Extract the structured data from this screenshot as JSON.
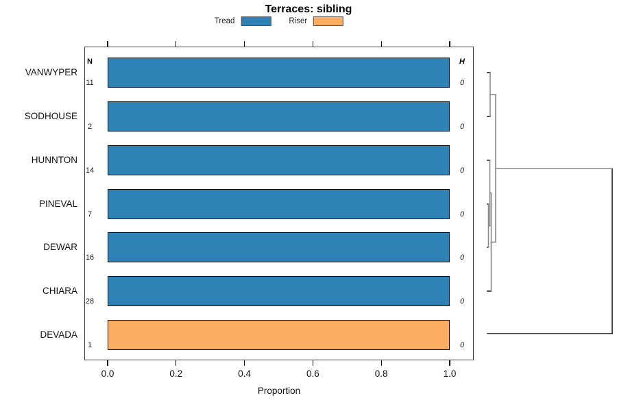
{
  "title": "Terraces: sibling",
  "legend": {
    "items": [
      {
        "label": "Tread",
        "color": "#2E81B5"
      },
      {
        "label": "Riser",
        "color": "#FBAD61"
      }
    ]
  },
  "columns": {
    "n_header": "N",
    "h_header": "H"
  },
  "x_axis": {
    "label": "Proportion",
    "ticks": [
      {
        "label": "0.0",
        "value": 0.0
      },
      {
        "label": "0.2",
        "value": 0.2
      },
      {
        "label": "0.4",
        "value": 0.4
      },
      {
        "label": "0.6",
        "value": 0.6
      },
      {
        "label": "0.8",
        "value": 0.8
      },
      {
        "label": "1.0",
        "value": 1.0
      }
    ]
  },
  "chart_data": {
    "type": "bar",
    "orientation": "horizontal",
    "title": "Terraces: sibling",
    "xlabel": "Proportion",
    "xlim": [
      0,
      1
    ],
    "grid": false,
    "legend_position": "top",
    "series": [
      {
        "name": "Tread",
        "color": "#2E81B5"
      },
      {
        "name": "Riser",
        "color": "#FBAD61"
      }
    ],
    "rows": [
      {
        "label": "VANWYPER",
        "n": "11",
        "h": "0",
        "series": "Tread",
        "proportion": 1.0
      },
      {
        "label": "SODHOUSE",
        "n": "2",
        "h": "0",
        "series": "Tread",
        "proportion": 1.0
      },
      {
        "label": "HUNNTON",
        "n": "14",
        "h": "0",
        "series": "Tread",
        "proportion": 1.0
      },
      {
        "label": "PINEVAL",
        "n": "7",
        "h": "0",
        "series": "Tread",
        "proportion": 1.0
      },
      {
        "label": "DEWAR",
        "n": "16",
        "h": "0",
        "series": "Tread",
        "proportion": 1.0
      },
      {
        "label": "CHIARA",
        "n": "28",
        "h": "0",
        "series": "Tread",
        "proportion": 1.0
      },
      {
        "label": "DEVADA",
        "n": "1",
        "h": "0",
        "series": "Riser",
        "proportion": 1.0
      }
    ],
    "dendrogram": {
      "side": "right",
      "note": "all pairwise merge heights ~0; root merge with DEVADA at maximum height",
      "merges": [
        [
          "VANWYPER",
          "SODHOUSE"
        ],
        [
          "PINEVAL",
          "DEWAR"
        ],
        [
          "HUNNTON",
          "(PINEVAL,DEWAR)"
        ],
        [
          "(HUNNTON,PINEVAL,DEWAR)",
          "CHIARA"
        ],
        [
          "(VANWYPER,SODHOUSE)",
          "(HUNNTON,PINEVAL,DEWAR,CHIARA)"
        ],
        [
          "(VANWYPER,SODHOUSE,HUNNTON,PINEVAL,DEWAR,CHIARA)",
          "DEVADA"
        ]
      ]
    }
  }
}
